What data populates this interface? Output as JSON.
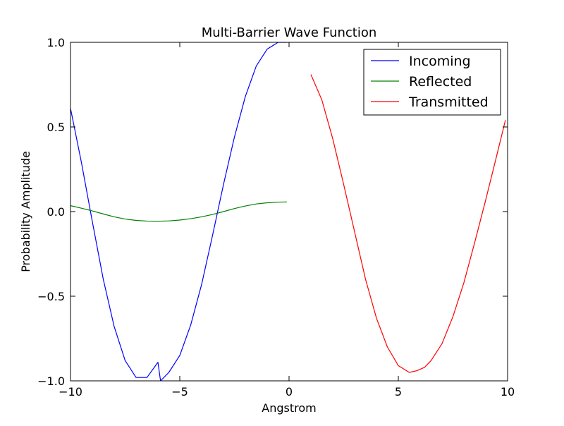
{
  "chart_data": {
    "type": "line",
    "title": "Multi-Barrier Wave Function",
    "xlabel": "Angstrom",
    "ylabel": "Probability Amplitude",
    "xlim": [
      -10,
      10
    ],
    "ylim": [
      -1.0,
      1.0
    ],
    "grid": false,
    "legend_position": "top-right",
    "x_ticks": [
      {
        "value": -10,
        "label": "−10"
      },
      {
        "value": -5,
        "label": "−5"
      },
      {
        "value": 0,
        "label": "0"
      },
      {
        "value": 5,
        "label": "5"
      },
      {
        "value": 10,
        "label": "10"
      }
    ],
    "y_ticks": [
      {
        "value": -1.0,
        "label": "−1.0"
      },
      {
        "value": -0.5,
        "label": "−0.5"
      },
      {
        "value": 0.0,
        "label": "0.0"
      },
      {
        "value": 0.5,
        "label": "0.5"
      },
      {
        "value": 1.0,
        "label": "1.0"
      }
    ],
    "series": [
      {
        "name": "Incoming",
        "color": "#0000ff",
        "x": [
          -10,
          -9.5,
          -9,
          -8.5,
          -8,
          -7.5,
          -7,
          -6.5,
          -6,
          -5.88,
          -5.5,
          -5,
          -4.5,
          -4,
          -3.5,
          -3,
          -2.5,
          -2,
          -1.5,
          -1,
          -0.5,
          -0.1
        ],
        "y": [
          0.61,
          0.29,
          -0.06,
          -0.4,
          -0.68,
          -0.88,
          -0.98,
          -0.98,
          -0.89,
          -1.0,
          -0.95,
          -0.85,
          -0.67,
          -0.43,
          -0.14,
          0.16,
          0.44,
          0.68,
          0.86,
          0.96,
          1.0,
          1.0
        ]
      },
      {
        "name": "Reflected",
        "color": "#008000",
        "x": [
          -10,
          -9.5,
          -9,
          -8.5,
          -8,
          -7.5,
          -7,
          -6.5,
          -6,
          -5.5,
          -5,
          -4.5,
          -4,
          -3.5,
          -3,
          -2.5,
          -2,
          -1.5,
          -1,
          -0.5,
          -0.1
        ],
        "y": [
          0.035,
          0.02,
          0.004,
          -0.014,
          -0.031,
          -0.044,
          -0.052,
          -0.056,
          -0.057,
          -0.055,
          -0.05,
          -0.042,
          -0.031,
          -0.017,
          0.0,
          0.018,
          0.033,
          0.045,
          0.052,
          0.056,
          0.057
        ]
      },
      {
        "name": "Transmitted",
        "color": "#ff0000",
        "x": [
          1.0,
          1.5,
          2.0,
          2.5,
          3.0,
          3.5,
          4.0,
          4.5,
          5.0,
          5.5,
          5.85,
          6.2,
          6.5,
          7.0,
          7.5,
          8.0,
          8.5,
          9.0,
          9.5,
          9.9
        ],
        "y": [
          0.81,
          0.66,
          0.43,
          0.16,
          -0.12,
          -0.4,
          -0.63,
          -0.8,
          -0.91,
          -0.95,
          -0.94,
          -0.92,
          -0.88,
          -0.78,
          -0.62,
          -0.42,
          -0.18,
          0.07,
          0.33,
          0.54
        ]
      }
    ]
  }
}
